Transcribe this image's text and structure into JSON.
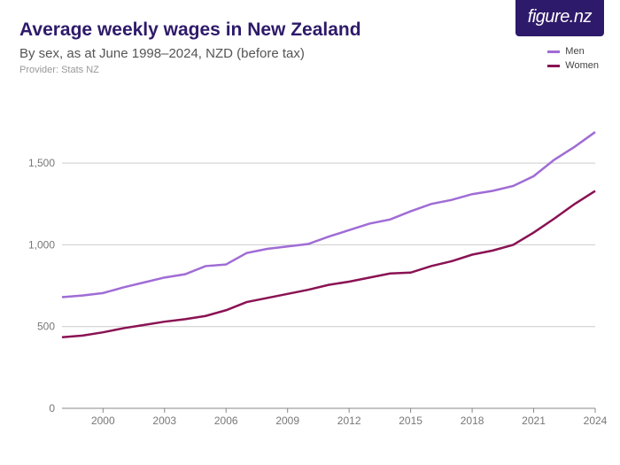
{
  "header": {
    "title": "Average weekly wages in New Zealand",
    "subtitle": "By sex, as at June 1998–2024, NZD (before tax)",
    "provider": "Provider: Stats NZ"
  },
  "logo": {
    "text": "figure.nz"
  },
  "legend": {
    "items": [
      {
        "label": "Men",
        "color": "#a06cd5"
      },
      {
        "label": "Women",
        "color": "#8a1253"
      }
    ]
  },
  "chart": {
    "type": "line",
    "background_color": "#ffffff",
    "title_color": "#2e1a6a",
    "grid_color": "#cccccc",
    "axis_text_color": "#777777",
    "line_width": 2.5,
    "x": {
      "min": 1998,
      "max": 2024,
      "ticks": [
        2000,
        2003,
        2006,
        2009,
        2012,
        2015,
        2018,
        2021,
        2024
      ]
    },
    "y": {
      "min": 0,
      "max": 1750,
      "ticks": [
        0,
        500,
        1000,
        1500
      ],
      "tick_labels": [
        "0",
        "500",
        "1,000",
        "1,500"
      ]
    },
    "series": [
      {
        "name": "Men",
        "color": "#a06cd5",
        "x": [
          1998,
          1999,
          2000,
          2001,
          2002,
          2003,
          2004,
          2005,
          2006,
          2007,
          2008,
          2009,
          2010,
          2011,
          2012,
          2013,
          2014,
          2015,
          2016,
          2017,
          2018,
          2019,
          2020,
          2021,
          2022,
          2023,
          2024
        ],
        "y": [
          680,
          690,
          705,
          740,
          770,
          800,
          820,
          870,
          880,
          950,
          975,
          990,
          1005,
          1050,
          1090,
          1130,
          1155,
          1205,
          1250,
          1275,
          1310,
          1330,
          1360,
          1420,
          1520,
          1600,
          1690
        ]
      },
      {
        "name": "Women",
        "color": "#8a1253",
        "x": [
          1998,
          1999,
          2000,
          2001,
          2002,
          2003,
          2004,
          2005,
          2006,
          2007,
          2008,
          2009,
          2010,
          2011,
          2012,
          2013,
          2014,
          2015,
          2016,
          2017,
          2018,
          2019,
          2020,
          2021,
          2022,
          2023,
          2024
        ],
        "y": [
          435,
          445,
          465,
          490,
          510,
          530,
          545,
          565,
          600,
          650,
          675,
          700,
          725,
          755,
          775,
          800,
          825,
          830,
          870,
          900,
          940,
          965,
          1000,
          1075,
          1160,
          1250,
          1330
        ]
      }
    ]
  }
}
